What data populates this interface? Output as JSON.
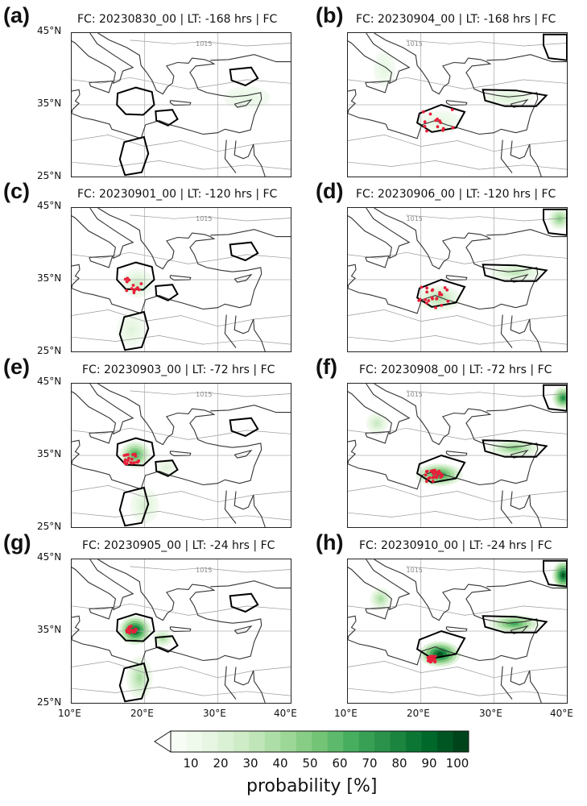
{
  "chart_data": {
    "type": "heatmap",
    "panels": [
      {
        "label": "(a)",
        "title": "FC: 20230830_00 | LT: -168 hrs | FC"
      },
      {
        "label": "(b)",
        "title": "FC: 20230904_00 | LT: -168 hrs | FC"
      },
      {
        "label": "(c)",
        "title": "FC: 20230901_00 | LT: -120 hrs | FC"
      },
      {
        "label": "(d)",
        "title": "FC: 20230906_00 | LT: -120 hrs | FC"
      },
      {
        "label": "(e)",
        "title": "FC: 20230903_00 | LT: -72 hrs | FC"
      },
      {
        "label": "(f)",
        "title": "FC: 20230908_00 | LT: -72 hrs | FC"
      },
      {
        "label": "(g)",
        "title": "FC: 20230905_00 | LT: -24 hrs | FC"
      },
      {
        "label": "(h)",
        "title": "FC: 20230910_00 | LT: -24 hrs | FC"
      }
    ],
    "lat_ticks": [
      "45°N",
      "35°N",
      "25°N"
    ],
    "lon_ticks": [
      "10°E",
      "20°E",
      "30°E",
      "40°E"
    ],
    "lat_range": [
      25,
      45
    ],
    "lon_range": [
      10,
      40
    ],
    "contour_label": "1015",
    "colorbar": {
      "ticks": [
        "10",
        "20",
        "30",
        "40",
        "50",
        "60",
        "70",
        "80",
        "90",
        "100"
      ],
      "range": [
        5,
        100
      ],
      "label": "probability [%]",
      "colors": [
        "#f7fcf5",
        "#e5f5e0",
        "#c7e9c0",
        "#a1d99b",
        "#74c476",
        "#41ab5d",
        "#238b45",
        "#006d2c",
        "#00441b"
      ]
    },
    "grid": true
  }
}
